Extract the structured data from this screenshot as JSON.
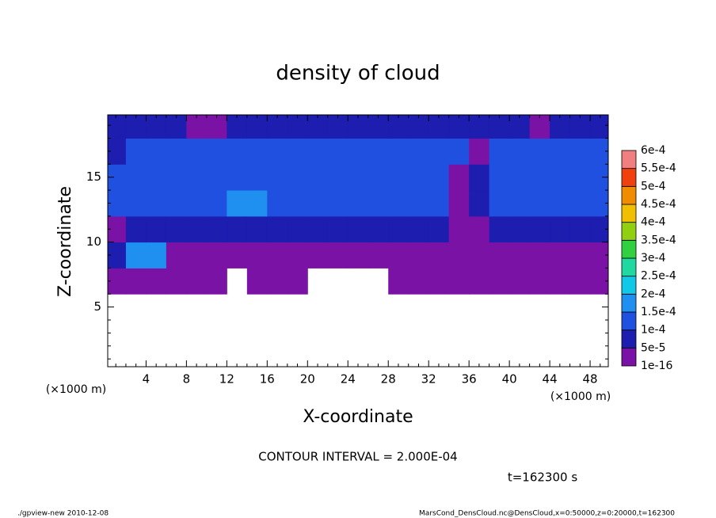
{
  "chart_data": {
    "type": "heatmap",
    "title": "density of cloud",
    "xlabel": "X-coordinate",
    "ylabel": "Z-coordinate",
    "x_unit_left": "(×1000 m)",
    "x_unit_right": "(×1000 m)",
    "contour_note": "CONTOUR INTERVAL = 2.000E-04",
    "time_note": "t=162300 s",
    "footer_left": "./gpview-new  2010-12-08",
    "footer_right": "MarsCond_DensCloud.nc@DensCloud,x=0:50000,z=0:20000,t=162300",
    "xlim": [
      0.2,
      49.8
    ],
    "ylim": [
      0.4,
      19.8
    ],
    "xticks": [
      4,
      8,
      12,
      16,
      20,
      24,
      28,
      32,
      36,
      40,
      44,
      48
    ],
    "yticks": [
      5,
      10,
      15
    ],
    "xminorticks": [
      1,
      2,
      3,
      5,
      6,
      7,
      9,
      10,
      11,
      13,
      14,
      15,
      17,
      18,
      19,
      21,
      22,
      23,
      25,
      26,
      27,
      29,
      30,
      31,
      33,
      34,
      35,
      37,
      38,
      39,
      41,
      42,
      43,
      45,
      46,
      47,
      49
    ],
    "yminorticks": [
      1,
      2,
      3,
      4,
      6,
      7,
      8,
      9,
      11,
      12,
      13,
      14,
      16,
      17,
      18,
      19
    ],
    "x": [
      1,
      3,
      5,
      7,
      9,
      11,
      13,
      15,
      17,
      19,
      21,
      23,
      25,
      27,
      29,
      31,
      33,
      35,
      37,
      39,
      41,
      43,
      45,
      47,
      49
    ],
    "y": [
      1,
      3,
      5,
      7,
      9,
      11,
      13,
      15,
      17,
      19
    ],
    "z": [
      [
        null,
        null,
        null,
        null,
        null,
        null,
        null,
        null,
        null,
        null,
        null,
        null,
        null,
        null,
        null,
        null,
        null,
        null,
        null,
        null,
        null,
        null,
        null,
        null,
        null
      ],
      [
        null,
        null,
        null,
        null,
        null,
        null,
        null,
        null,
        null,
        null,
        null,
        null,
        null,
        null,
        null,
        null,
        null,
        null,
        null,
        null,
        null,
        null,
        null,
        null,
        null
      ],
      [
        null,
        null,
        null,
        null,
        null,
        null,
        null,
        null,
        null,
        null,
        null,
        null,
        null,
        null,
        null,
        null,
        null,
        null,
        null,
        null,
        null,
        null,
        null,
        null,
        null
      ],
      [
        2e-05,
        2e-05,
        2e-05,
        2e-05,
        2e-05,
        2e-05,
        null,
        2e-05,
        2e-05,
        2e-05,
        null,
        null,
        null,
        null,
        2e-05,
        2e-05,
        2e-05,
        2e-05,
        2e-05,
        2e-05,
        2e-05,
        2e-05,
        2e-05,
        2e-05,
        2e-05
      ],
      [
        7e-05,
        0.00017,
        0.00017,
        2e-05,
        2e-05,
        2e-05,
        2e-05,
        2e-05,
        2e-05,
        2e-05,
        2e-05,
        2e-05,
        2e-05,
        2e-05,
        2e-05,
        2e-05,
        2e-05,
        2e-05,
        2e-05,
        2e-05,
        2e-05,
        2e-05,
        2e-05,
        2e-05,
        2e-05
      ],
      [
        2e-05,
        7e-05,
        7e-05,
        7e-05,
        7e-05,
        7e-05,
        7e-05,
        7e-05,
        7e-05,
        7e-05,
        7e-05,
        7e-05,
        7e-05,
        7e-05,
        7e-05,
        7e-05,
        7e-05,
        2e-05,
        2e-05,
        7e-05,
        7e-05,
        7e-05,
        7e-05,
        7e-05,
        7e-05
      ],
      [
        0.00012,
        0.00012,
        0.00012,
        0.00012,
        0.00012,
        0.00012,
        0.00017,
        0.00017,
        0.00012,
        0.00012,
        0.00012,
        0.00012,
        0.00012,
        0.00012,
        0.00012,
        0.00012,
        0.00012,
        2e-05,
        7e-05,
        0.00012,
        0.00012,
        0.00012,
        0.00012,
        0.00012,
        0.00012
      ],
      [
        0.00012,
        0.00012,
        0.00012,
        0.00012,
        0.00012,
        0.00012,
        0.00012,
        0.00012,
        0.00012,
        0.00012,
        0.00012,
        0.00012,
        0.00012,
        0.00012,
        0.00012,
        0.00012,
        0.00012,
        2e-05,
        7e-05,
        0.00012,
        0.00012,
        0.00012,
        0.00012,
        0.00012,
        0.00012
      ],
      [
        7e-05,
        0.00012,
        0.00012,
        0.00012,
        0.00012,
        0.00012,
        0.00012,
        0.00012,
        0.00012,
        0.00012,
        0.00012,
        0.00012,
        0.00012,
        0.00012,
        0.00012,
        0.00012,
        0.00012,
        0.00012,
        2e-05,
        0.00012,
        0.00012,
        0.00012,
        0.00012,
        0.00012,
        0.00012
      ],
      [
        7e-05,
        7e-05,
        7e-05,
        7e-05,
        2e-05,
        2e-05,
        7e-05,
        7e-05,
        7e-05,
        7e-05,
        7e-05,
        7e-05,
        7e-05,
        7e-05,
        7e-05,
        7e-05,
        7e-05,
        7e-05,
        7e-05,
        7e-05,
        7e-05,
        2e-05,
        7e-05,
        7e-05,
        7e-05
      ]
    ],
    "colorbar": {
      "levels": [
        {
          "value": 1e-16,
          "label": "1e-16"
        },
        {
          "value": 5e-05,
          "label": "5e-5"
        },
        {
          "value": 0.0001,
          "label": "1e-4"
        },
        {
          "value": 0.00015,
          "label": "1.5e-4"
        },
        {
          "value": 0.0002,
          "label": "2e-4"
        },
        {
          "value": 0.00025,
          "label": "2.5e-4"
        },
        {
          "value": 0.0003,
          "label": "3e-4"
        },
        {
          "value": 0.00035,
          "label": "3.5e-4"
        },
        {
          "value": 0.0004,
          "label": "4e-4"
        },
        {
          "value": 0.00045,
          "label": "4.5e-4"
        },
        {
          "value": 0.0005,
          "label": "5e-4"
        },
        {
          "value": 0.00055,
          "label": "5.5e-4"
        },
        {
          "value": 0.0006,
          "label": "6e-4"
        }
      ],
      "colors": [
        "#7b12a6",
        "#1d1db0",
        "#2050e0",
        "#2090f0",
        "#10c8e8",
        "#20d8a0",
        "#30d040",
        "#90d010",
        "#f0c000",
        "#f08c00",
        "#f04010",
        "#f08080"
      ]
    }
  }
}
